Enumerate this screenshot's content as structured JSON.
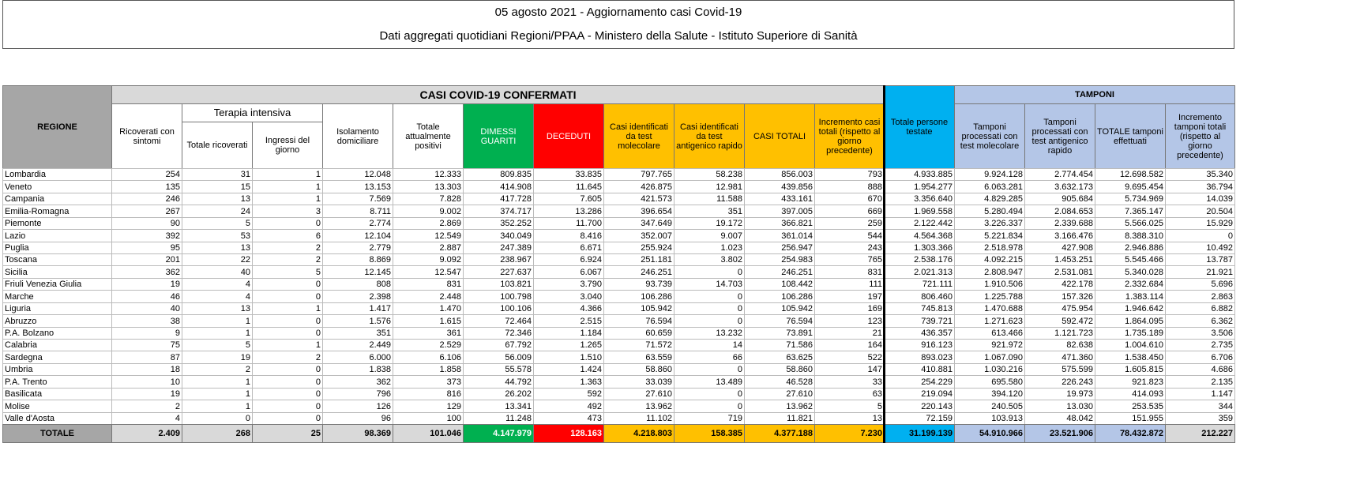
{
  "header": {
    "title": "05 agosto 2021 - Aggiornamento casi Covid-19",
    "subtitle": "Dati aggregati quotidiani Regioni/PPAA - Ministero della Salute - Istituto Superiore di Sanità"
  },
  "table": {
    "group_headers": {
      "region": "REGIONE",
      "cases": "CASI COVID-19 CONFERMATI",
      "intensive": "Terapia intensiva",
      "swabs": "TAMPONI"
    },
    "columns": [
      "Ricoverati con sintomi",
      "Totale ricoverati",
      "Ingressi del giorno",
      "Isolamento domiciliare",
      "Totale attualmente positivi",
      "DIMESSI GUARITI",
      "DECEDUTI",
      "Casi identificati da test molecolare",
      "Casi identificati da test antigenico rapido",
      "CASI TOTALI",
      "Incremento casi totali (rispetto al giorno precedente)",
      "Totale persone testate",
      "Tamponi processati con test molecolare",
      "Tamponi processati con test antigenico rapido",
      "TOTALE tamponi effettuati",
      "Incremento tamponi totali (rispetto al giorno precedente)"
    ],
    "rows": [
      [
        "Lombardia",
        "254",
        "31",
        "1",
        "12.048",
        "12.333",
        "809.835",
        "33.835",
        "797.765",
        "58.238",
        "856.003",
        "793",
        "4.933.885",
        "9.924.128",
        "2.774.454",
        "12.698.582",
        "35.340"
      ],
      [
        "Veneto",
        "135",
        "15",
        "1",
        "13.153",
        "13.303",
        "414.908",
        "11.645",
        "426.875",
        "12.981",
        "439.856",
        "888",
        "1.954.277",
        "6.063.281",
        "3.632.173",
        "9.695.454",
        "36.794"
      ],
      [
        "Campania",
        "246",
        "13",
        "1",
        "7.569",
        "7.828",
        "417.728",
        "7.605",
        "421.573",
        "11.588",
        "433.161",
        "670",
        "3.356.640",
        "4.829.285",
        "905.684",
        "5.734.969",
        "14.039"
      ],
      [
        "Emilia-Romagna",
        "267",
        "24",
        "3",
        "8.711",
        "9.002",
        "374.717",
        "13.286",
        "396.654",
        "351",
        "397.005",
        "669",
        "1.969.558",
        "5.280.494",
        "2.084.653",
        "7.365.147",
        "20.504"
      ],
      [
        "Piemonte",
        "90",
        "5",
        "0",
        "2.774",
        "2.869",
        "352.252",
        "11.700",
        "347.649",
        "19.172",
        "366.821",
        "259",
        "2.122.442",
        "3.226.337",
        "2.339.688",
        "5.566.025",
        "15.929"
      ],
      [
        "Lazio",
        "392",
        "53",
        "6",
        "12.104",
        "12.549",
        "340.049",
        "8.416",
        "352.007",
        "9.007",
        "361.014",
        "544",
        "4.564.368",
        "5.221.834",
        "3.166.476",
        "8.388.310",
        "0"
      ],
      [
        "Puglia",
        "95",
        "13",
        "2",
        "2.779",
        "2.887",
        "247.389",
        "6.671",
        "255.924",
        "1.023",
        "256.947",
        "243",
        "1.303.366",
        "2.518.978",
        "427.908",
        "2.946.886",
        "10.492"
      ],
      [
        "Toscana",
        "201",
        "22",
        "2",
        "8.869",
        "9.092",
        "238.967",
        "6.924",
        "251.181",
        "3.802",
        "254.983",
        "765",
        "2.538.176",
        "4.092.215",
        "1.453.251",
        "5.545.466",
        "13.787"
      ],
      [
        "Sicilia",
        "362",
        "40",
        "5",
        "12.145",
        "12.547",
        "227.637",
        "6.067",
        "246.251",
        "0",
        "246.251",
        "831",
        "2.021.313",
        "2.808.947",
        "2.531.081",
        "5.340.028",
        "21.921"
      ],
      [
        "Friuli Venezia Giulia",
        "19",
        "4",
        "0",
        "808",
        "831",
        "103.821",
        "3.790",
        "93.739",
        "14.703",
        "108.442",
        "111",
        "721.111",
        "1.910.506",
        "422.178",
        "2.332.684",
        "5.696"
      ],
      [
        "Marche",
        "46",
        "4",
        "0",
        "2.398",
        "2.448",
        "100.798",
        "3.040",
        "106.286",
        "0",
        "106.286",
        "197",
        "806.460",
        "1.225.788",
        "157.326",
        "1.383.114",
        "2.863"
      ],
      [
        "Liguria",
        "40",
        "13",
        "1",
        "1.417",
        "1.470",
        "100.106",
        "4.366",
        "105.942",
        "0",
        "105.942",
        "169",
        "745.813",
        "1.470.688",
        "475.954",
        "1.946.642",
        "6.882"
      ],
      [
        "Abruzzo",
        "38",
        "1",
        "0",
        "1.576",
        "1.615",
        "72.464",
        "2.515",
        "76.594",
        "0",
        "76.594",
        "123",
        "739.721",
        "1.271.623",
        "592.472",
        "1.864.095",
        "6.362"
      ],
      [
        "P.A. Bolzano",
        "9",
        "1",
        "0",
        "351",
        "361",
        "72.346",
        "1.184",
        "60.659",
        "13.232",
        "73.891",
        "21",
        "436.357",
        "613.466",
        "1.121.723",
        "1.735.189",
        "3.506"
      ],
      [
        "Calabria",
        "75",
        "5",
        "1",
        "2.449",
        "2.529",
        "67.792",
        "1.265",
        "71.572",
        "14",
        "71.586",
        "164",
        "916.123",
        "921.972",
        "82.638",
        "1.004.610",
        "2.735"
      ],
      [
        "Sardegna",
        "87",
        "19",
        "2",
        "6.000",
        "6.106",
        "56.009",
        "1.510",
        "63.559",
        "66",
        "63.625",
        "522",
        "893.023",
        "1.067.090",
        "471.360",
        "1.538.450",
        "6.706"
      ],
      [
        "Umbria",
        "18",
        "2",
        "0",
        "1.838",
        "1.858",
        "55.578",
        "1.424",
        "58.860",
        "0",
        "58.860",
        "147",
        "410.881",
        "1.030.216",
        "575.599",
        "1.605.815",
        "4.686"
      ],
      [
        "P.A. Trento",
        "10",
        "1",
        "0",
        "362",
        "373",
        "44.792",
        "1.363",
        "33.039",
        "13.489",
        "46.528",
        "33",
        "254.229",
        "695.580",
        "226.243",
        "921.823",
        "2.135"
      ],
      [
        "Basilicata",
        "19",
        "1",
        "0",
        "796",
        "816",
        "26.202",
        "592",
        "27.610",
        "0",
        "27.610",
        "63",
        "219.094",
        "394.120",
        "19.973",
        "414.093",
        "1.147"
      ],
      [
        "Molise",
        "2",
        "1",
        "0",
        "126",
        "129",
        "13.341",
        "492",
        "13.962",
        "0",
        "13.962",
        "5",
        "220.143",
        "240.505",
        "13.030",
        "253.535",
        "344"
      ],
      [
        "Valle d'Aosta",
        "4",
        "0",
        "0",
        "96",
        "100",
        "11.248",
        "473",
        "11.102",
        "719",
        "11.821",
        "13",
        "72.159",
        "103.913",
        "48.042",
        "151.955",
        "359"
      ]
    ],
    "total": [
      "TOTALE",
      "2.409",
      "268",
      "25",
      "98.369",
      "101.046",
      "4.147.979",
      "128.163",
      "4.218.803",
      "158.385",
      "4.377.188",
      "7.230",
      "31.199.139",
      "54.910.966",
      "23.521.906",
      "78.432.872",
      "212.227"
    ]
  }
}
